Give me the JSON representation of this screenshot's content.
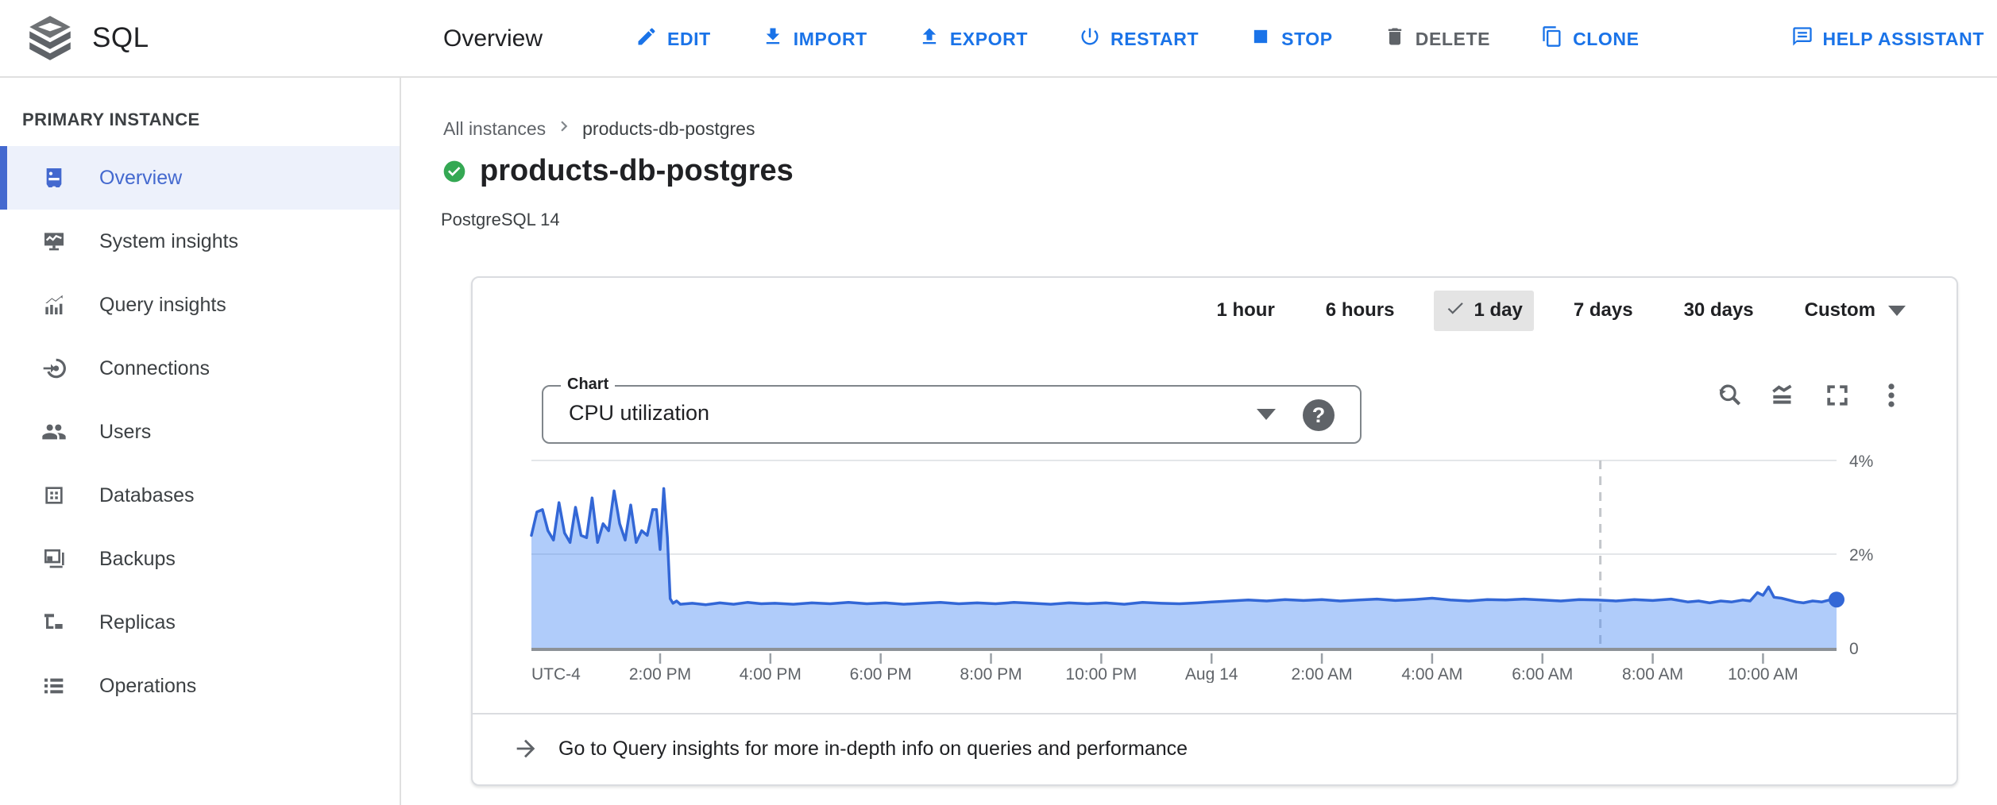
{
  "header": {
    "product": "SQL",
    "page_title": "Overview",
    "actions": [
      {
        "label": "EDIT",
        "disabled": false
      },
      {
        "label": "IMPORT",
        "disabled": false
      },
      {
        "label": "EXPORT",
        "disabled": false
      },
      {
        "label": "RESTART",
        "disabled": false
      },
      {
        "label": "STOP",
        "disabled": false
      },
      {
        "label": "DELETE",
        "disabled": true
      },
      {
        "label": "CLONE",
        "disabled": false
      },
      {
        "label": "HELP ASSISTANT",
        "disabled": false
      }
    ]
  },
  "sidebar": {
    "section": "PRIMARY INSTANCE",
    "items": [
      {
        "label": "Overview",
        "selected": true
      },
      {
        "label": "System insights",
        "selected": false
      },
      {
        "label": "Query insights",
        "selected": false
      },
      {
        "label": "Connections",
        "selected": false
      },
      {
        "label": "Users",
        "selected": false
      },
      {
        "label": "Databases",
        "selected": false
      },
      {
        "label": "Backups",
        "selected": false
      },
      {
        "label": "Replicas",
        "selected": false
      },
      {
        "label": "Operations",
        "selected": false
      }
    ]
  },
  "content": {
    "breadcrumb": {
      "parent": "All instances",
      "current": "products-db-postgres"
    },
    "instance": {
      "name": "products-db-postgres",
      "status": "healthy",
      "engine": "PostgreSQL 14"
    },
    "card": {
      "time_ranges": [
        {
          "label": "1 hour",
          "selected": false
        },
        {
          "label": "6 hours",
          "selected": false
        },
        {
          "label": "1 day",
          "selected": true
        },
        {
          "label": "7 days",
          "selected": false
        },
        {
          "label": "30 days",
          "selected": false
        },
        {
          "label": "Custom",
          "selected": false,
          "has_dropdown": true
        }
      ],
      "chart_selector": {
        "label": "Chart",
        "value": "CPU utilization"
      },
      "footer_link": "Go to Query insights for more in-depth info on queries and performance"
    }
  },
  "icons": {
    "help_glyph": "?",
    "names": [
      "sql-logo-icon",
      "edit-icon",
      "import-icon",
      "export-icon",
      "restart-icon",
      "stop-icon",
      "delete-icon",
      "clone-icon",
      "help-assistant-icon",
      "overview-icon",
      "system-insights-icon",
      "query-insights-icon",
      "connections-icon",
      "users-icon",
      "databases-icon",
      "backups-icon",
      "replicas-icon",
      "operations-icon",
      "status-ok-icon",
      "zoom-reset-icon",
      "area-mode-icon",
      "fullscreen-icon",
      "kebab-menu-icon",
      "arrow-forward-icon",
      "chevron-right-icon",
      "dropdown-caret-icon"
    ]
  },
  "colors": {
    "accent_blue": "#1a73e8",
    "nav_selected_blue": "#4469cf",
    "chart_line": "#3367d6",
    "chart_fill": "rgba(66,133,244,0.42)",
    "status_green": "#34a853",
    "disabled_gray": "#5f6368"
  },
  "chart_data": {
    "type": "area",
    "title": "CPU utilization",
    "unit": "%",
    "ylim": [
      0,
      4
    ],
    "y_gridlines": [
      4,
      2
    ],
    "y_ticks": [
      {
        "value": 4,
        "label": "4%"
      },
      {
        "value": 2,
        "label": "2%"
      },
      {
        "value": 0,
        "label": "0"
      }
    ],
    "timezone_label": "UTC-4",
    "x_domain": [
      0,
      1420
    ],
    "x_ticks": [
      {
        "minute": 140,
        "label": "2:00 PM"
      },
      {
        "minute": 260,
        "label": "4:00 PM"
      },
      {
        "minute": 380,
        "label": "6:00 PM"
      },
      {
        "minute": 500,
        "label": "8:00 PM"
      },
      {
        "minute": 620,
        "label": "10:00 PM"
      },
      {
        "minute": 740,
        "label": "Aug 14"
      },
      {
        "minute": 860,
        "label": "2:00 AM"
      },
      {
        "minute": 980,
        "label": "4:00 AM"
      },
      {
        "minute": 1100,
        "label": "6:00 AM"
      },
      {
        "minute": 1220,
        "label": "8:00 AM"
      },
      {
        "minute": 1340,
        "label": "10:00 AM"
      }
    ],
    "marker_minute": 1163,
    "points": [
      [
        0,
        2.4
      ],
      [
        6,
        2.9
      ],
      [
        12,
        2.95
      ],
      [
        18,
        2.5
      ],
      [
        24,
        2.3
      ],
      [
        30,
        3.1
      ],
      [
        36,
        2.45
      ],
      [
        42,
        2.25
      ],
      [
        48,
        3.0
      ],
      [
        54,
        2.4
      ],
      [
        60,
        2.35
      ],
      [
        66,
        3.2
      ],
      [
        72,
        2.25
      ],
      [
        78,
        2.65
      ],
      [
        84,
        2.5
      ],
      [
        90,
        3.35
      ],
      [
        96,
        2.65
      ],
      [
        102,
        2.3
      ],
      [
        108,
        3.05
      ],
      [
        114,
        2.25
      ],
      [
        120,
        2.5
      ],
      [
        126,
        2.4
      ],
      [
        132,
        2.95
      ],
      [
        136,
        2.95
      ],
      [
        140,
        2.1
      ],
      [
        144,
        3.4
      ],
      [
        148,
        2.35
      ],
      [
        151,
        1.05
      ],
      [
        154,
        0.95
      ],
      [
        158,
        1.0
      ],
      [
        162,
        0.93
      ],
      [
        175,
        0.95
      ],
      [
        190,
        0.92
      ],
      [
        205,
        0.96
      ],
      [
        220,
        0.93
      ],
      [
        235,
        0.97
      ],
      [
        250,
        0.94
      ],
      [
        265,
        0.95
      ],
      [
        285,
        0.93
      ],
      [
        305,
        0.96
      ],
      [
        325,
        0.94
      ],
      [
        345,
        0.97
      ],
      [
        365,
        0.94
      ],
      [
        385,
        0.96
      ],
      [
        405,
        0.93
      ],
      [
        425,
        0.95
      ],
      [
        445,
        0.97
      ],
      [
        465,
        0.94
      ],
      [
        485,
        0.96
      ],
      [
        505,
        0.94
      ],
      [
        525,
        0.97
      ],
      [
        545,
        0.95
      ],
      [
        565,
        0.93
      ],
      [
        585,
        0.96
      ],
      [
        605,
        0.94
      ],
      [
        625,
        0.96
      ],
      [
        645,
        0.93
      ],
      [
        665,
        0.97
      ],
      [
        685,
        0.95
      ],
      [
        705,
        0.94
      ],
      [
        725,
        0.96
      ],
      [
        740,
        0.98
      ],
      [
        760,
        1.0
      ],
      [
        780,
        1.02
      ],
      [
        800,
        1.0
      ],
      [
        820,
        1.03
      ],
      [
        840,
        1.01
      ],
      [
        860,
        1.03
      ],
      [
        880,
        1.0
      ],
      [
        900,
        1.02
      ],
      [
        920,
        1.04
      ],
      [
        940,
        1.01
      ],
      [
        960,
        1.03
      ],
      [
        980,
        1.06
      ],
      [
        1000,
        1.02
      ],
      [
        1020,
        1.0
      ],
      [
        1040,
        1.03
      ],
      [
        1060,
        1.02
      ],
      [
        1080,
        1.04
      ],
      [
        1100,
        1.02
      ],
      [
        1120,
        1.0
      ],
      [
        1140,
        1.03
      ],
      [
        1160,
        1.02
      ],
      [
        1180,
        1.0
      ],
      [
        1200,
        1.03
      ],
      [
        1220,
        1.01
      ],
      [
        1240,
        1.04
      ],
      [
        1258,
        0.98
      ],
      [
        1270,
        1.0
      ],
      [
        1282,
        0.96
      ],
      [
        1294,
        1.0
      ],
      [
        1306,
        0.98
      ],
      [
        1318,
        1.02
      ],
      [
        1326,
        1.0
      ],
      [
        1334,
        1.18
      ],
      [
        1340,
        1.12
      ],
      [
        1346,
        1.3
      ],
      [
        1352,
        1.08
      ],
      [
        1360,
        1.06
      ],
      [
        1368,
        1.02
      ],
      [
        1376,
        0.98
      ],
      [
        1384,
        0.96
      ],
      [
        1394,
        1.0
      ],
      [
        1404,
        0.98
      ],
      [
        1412,
        1.02
      ],
      [
        1420,
        1.03
      ]
    ]
  }
}
